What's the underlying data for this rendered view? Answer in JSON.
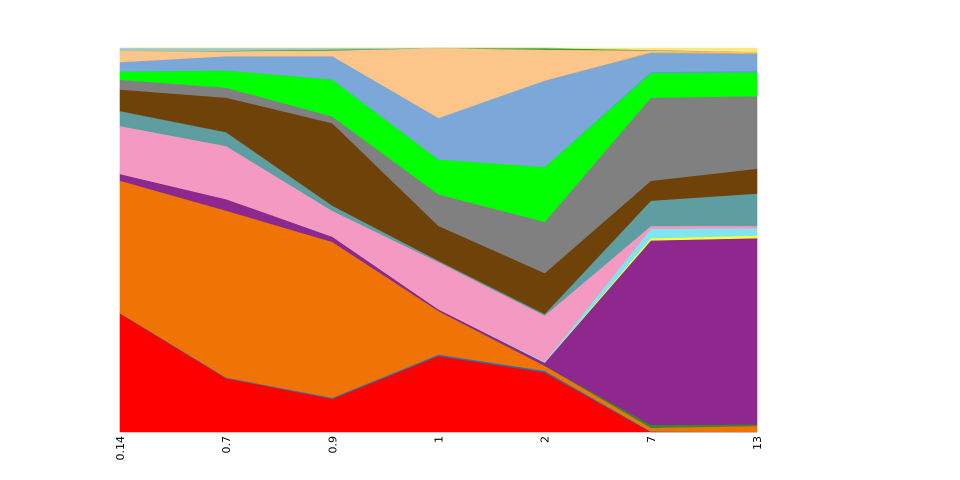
{
  "chart_data": {
    "type": "area",
    "stacked": "normalized",
    "categories": [
      "0.14",
      "0.7",
      "0.9",
      "1",
      "2",
      "7",
      "13"
    ],
    "ylim": [
      0,
      1
    ],
    "grid": false,
    "legend": "none",
    "title": "",
    "xlabel": "",
    "ylabel": "",
    "series": [
      {
        "color": "#ff0000",
        "values": [
          0.315,
          0.14,
          0.088,
          0.218,
          0.155,
          0.0,
          0.0
        ]
      },
      {
        "color": "#1f77b4",
        "values": [
          0.001,
          0.002,
          0.003,
          0.004,
          0.004,
          0.002,
          0.0
        ]
      },
      {
        "color": "#f07305",
        "values": [
          0.352,
          0.435,
          0.413,
          0.125,
          0.013,
          0.01,
          0.016
        ]
      },
      {
        "color": "#2e8b2e",
        "values": [
          0.0,
          0.0,
          0.0,
          0.0,
          0.0,
          0.008,
          0.004
        ]
      },
      {
        "color": "#8e278e",
        "values": [
          0.018,
          0.03,
          0.014,
          0.005,
          0.008,
          0.51,
          0.488
        ]
      },
      {
        "color": "#ffff33",
        "values": [
          0.0,
          0.0,
          0.0,
          0.0,
          0.0,
          0.006,
          0.007
        ]
      },
      {
        "color": "#7fe6ef",
        "values": [
          0.0,
          0.0,
          0.0,
          0.0,
          0.002,
          0.026,
          0.019
        ]
      },
      {
        "color": "#f49ac2",
        "values": [
          0.127,
          0.138,
          0.068,
          0.135,
          0.12,
          0.008,
          0.006
        ]
      },
      {
        "color": "#5f9ea0",
        "values": [
          0.04,
          0.036,
          0.014,
          0.004,
          0.004,
          0.07,
          0.085
        ]
      },
      {
        "color": "#6e4209",
        "values": [
          0.057,
          0.09,
          0.218,
          0.1,
          0.106,
          0.055,
          0.065
        ]
      },
      {
        "color": "#808080",
        "values": [
          0.026,
          0.026,
          0.018,
          0.09,
          0.133,
          0.23,
          0.19
        ]
      },
      {
        "color": "#00ff00",
        "values": [
          0.022,
          0.045,
          0.098,
          0.1,
          0.142,
          0.068,
          0.063
        ]
      },
      {
        "color": "#6495ed",
        "values": [
          0.0,
          0.0,
          0.0,
          0.0,
          0.0,
          0.003,
          0.003
        ]
      },
      {
        "color": "#7ba7d9",
        "values": [
          0.025,
          0.037,
          0.062,
          0.119,
          0.224,
          0.053,
          0.045
        ]
      },
      {
        "color": "#f5b041",
        "values": [
          0.0,
          0.0,
          0.0,
          0.0,
          0.0,
          0.002,
          0.003
        ]
      },
      {
        "color": "#fcc68a",
        "values": [
          0.03,
          0.013,
          0.015,
          0.2,
          0.08,
          0.003,
          0.002
        ]
      },
      {
        "color": "#d2b48c",
        "values": [
          0.0,
          0.0,
          0.0,
          0.0,
          0.0,
          0.002,
          0.0
        ]
      },
      {
        "color": "#33a02c",
        "values": [
          0.0,
          0.001,
          0.002,
          0.0,
          0.004,
          0.001,
          0.0
        ]
      },
      {
        "color": "#9ec9c9",
        "values": [
          0.007,
          0.007,
          0.004,
          0.0,
          0.0,
          0.0,
          0.0
        ]
      },
      {
        "color": "#ffe680",
        "values": [
          0.0,
          0.0,
          0.0,
          0.0,
          0.0,
          0.005,
          0.01
        ]
      }
    ]
  }
}
